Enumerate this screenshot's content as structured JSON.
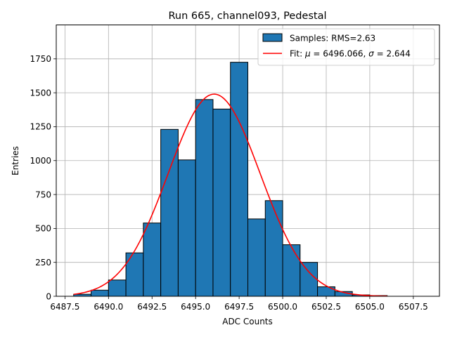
{
  "chart_data": {
    "type": "bar",
    "title": "Run 665, channel093, Pedestal",
    "xlabel": "ADC Counts",
    "ylabel": "Entries",
    "xlim": [
      6487.0,
      6509.0
    ],
    "ylim": [
      0,
      2000
    ],
    "xticks": [
      6487.5,
      6490.0,
      6492.5,
      6495.0,
      6497.5,
      6500.0,
      6502.5,
      6505.0,
      6507.5
    ],
    "xtick_labels": [
      "6487.5",
      "6490.0",
      "6492.5",
      "6495.0",
      "6497.5",
      "6500.0",
      "6502.5",
      "6505.0",
      "6507.5"
    ],
    "yticks": [
      0,
      250,
      500,
      750,
      1000,
      1250,
      1500,
      1750
    ],
    "ytick_labels": [
      "0",
      "250",
      "500",
      "750",
      "1000",
      "1250",
      "1500",
      "1750"
    ],
    "grid": true,
    "legend_position": "top-right",
    "bar_color": "#1f77b4",
    "fit_color": "#ff0000",
    "histogram": {
      "name": "Samples: RMS=2.63",
      "bin_edges": [
        6488,
        6489,
        6490,
        6491,
        6492,
        6493,
        6494,
        6495,
        6496,
        6497,
        6498,
        6499,
        6500,
        6501,
        6502,
        6503,
        6504,
        6505,
        6506
      ],
      "counts": [
        15,
        45,
        120,
        320,
        540,
        1230,
        1005,
        1450,
        1380,
        1725,
        570,
        705,
        380,
        250,
        70,
        35,
        10,
        5
      ]
    },
    "fit": {
      "name_prefix": "Fit: ",
      "mu_symbol": "μ",
      "sigma_symbol": "σ",
      "mu_value": "6496.066",
      "sigma_value": "2.644",
      "mu": 6496.066,
      "sigma": 2.644,
      "amplitude": 1490,
      "x_range": [
        6488,
        6506
      ]
    }
  }
}
